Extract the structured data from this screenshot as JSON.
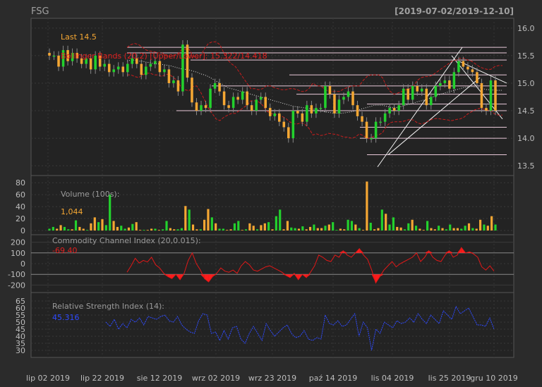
{
  "chart_data": {
    "type": "candlestick",
    "ticker": "FSG",
    "range": "[2019-07-02/2019-12-10]",
    "x_labels": [
      "lip 02 2019",
      "lip 22 2019",
      "sie 12 2019",
      "wrz 02 2019",
      "wrz 23 2019",
      "paź 14 2019",
      "lis 04 2019",
      "lis 25 2019",
      "gru 10 2019"
    ],
    "price": {
      "yticks": [
        13.5,
        14.0,
        14.5,
        15.0,
        15.5,
        16.0
      ],
      "ylim": [
        13.4,
        16.1
      ],
      "last_label": "Last 14.5",
      "bb_label": "Bollinger Bands (20,2) [Upper/Lower]: 15.322/14.418",
      "closes": [
        15.5,
        15.5,
        15.3,
        15.6,
        15.4,
        15.55,
        15.45,
        15.35,
        15.45,
        15.25,
        15.5,
        15.3,
        15.35,
        15.2,
        15.25,
        15.3,
        15.2,
        15.35,
        15.45,
        15.35,
        15.15,
        15.3,
        15.35,
        15.4,
        15.2,
        15.25,
        15.0,
        15.05,
        14.85,
        15.7,
        15.1,
        14.65,
        14.5,
        14.6,
        14.55,
        14.9,
        15.0,
        14.85,
        14.6,
        14.55,
        14.75,
        14.7,
        14.85,
        14.6,
        14.5,
        14.7,
        14.75,
        14.55,
        14.4,
        14.45,
        14.3,
        14.2,
        14.0,
        14.5,
        14.45,
        14.3,
        14.6,
        14.45,
        14.55,
        14.55,
        14.95,
        14.8,
        14.45,
        14.7,
        14.75,
        14.85,
        14.6,
        14.4,
        14.3,
        14.0,
        14.0,
        14.3,
        14.3,
        14.45,
        14.55,
        14.5,
        14.6,
        14.9,
        14.7,
        14.95,
        14.85,
        14.9,
        14.6,
        14.75,
        14.95,
        15.0,
        15.05,
        14.9,
        15.2,
        15.4,
        15.3,
        15.25,
        15.2,
        15.0,
        14.55,
        14.5,
        15.05,
        14.5
      ],
      "bb_upper": [
        15.65,
        15.7,
        15.72,
        15.7,
        15.65,
        15.6,
        15.58,
        15.57,
        15.55,
        15.55,
        15.5,
        15.48,
        15.5,
        15.52,
        15.6,
        15.62,
        15.62,
        15.5,
        15.45,
        15.5,
        15.62,
        15.72,
        15.75,
        15.75,
        15.7,
        15.55,
        15.42,
        15.35,
        15.3,
        15.2,
        15.1,
        15.0,
        14.9,
        14.9,
        14.88,
        14.9,
        14.95,
        14.95,
        14.92,
        14.9,
        14.88,
        14.88,
        14.9,
        14.9,
        14.88,
        14.85,
        14.85,
        14.9,
        15.0,
        14.95,
        14.95,
        14.9,
        14.85,
        14.85,
        14.85,
        14.85,
        14.9,
        14.92,
        14.95,
        14.95,
        14.95,
        15.05,
        15.12,
        15.15,
        15.15,
        15.15,
        15.1,
        14.95,
        14.85,
        14.8,
        14.82,
        14.85,
        14.88,
        14.9,
        14.95,
        15.05,
        15.1,
        15.12,
        15.12,
        15.15,
        15.2,
        15.25,
        15.3,
        15.35,
        15.4,
        15.42,
        15.45,
        15.45,
        15.42,
        15.4,
        15.35,
        15.3,
        15.27,
        15.25,
        15.25,
        15.3,
        15.32,
        15.32
      ],
      "bb_mid": [
        15.4,
        15.42,
        15.42,
        15.4,
        15.4,
        15.38,
        15.37,
        15.35,
        15.35,
        15.34,
        15.33,
        15.32,
        15.3,
        15.28,
        15.26,
        15.25,
        15.24,
        15.22,
        15.2,
        15.17,
        15.15,
        15.12,
        15.08,
        15.04,
        15.0,
        14.96,
        14.92,
        14.9,
        14.88,
        14.86,
        14.84,
        14.82,
        14.8,
        14.78,
        14.76,
        14.74,
        14.72,
        14.7,
        14.68,
        14.66,
        14.64,
        14.62,
        14.6,
        14.58,
        14.57,
        14.56,
        14.55,
        14.54,
        14.53,
        14.52,
        14.5,
        14.48,
        14.47,
        14.46,
        14.46,
        14.45,
        14.46,
        14.47,
        14.48,
        14.5,
        14.52,
        14.54,
        14.56,
        14.58,
        14.6,
        14.6,
        14.6,
        14.58,
        14.56,
        14.55,
        14.56,
        14.58,
        14.6,
        14.62,
        14.64,
        14.66,
        14.68,
        14.7,
        14.72,
        14.75,
        14.78,
        14.8,
        14.82,
        14.84,
        14.86,
        14.88,
        14.9,
        14.92,
        14.93,
        14.94,
        14.93,
        14.92,
        14.9,
        14.88,
        14.88,
        14.87,
        14.87,
        14.87
      ],
      "bb_lower": [
        15.15,
        15.15,
        15.12,
        15.1,
        15.15,
        15.18,
        15.18,
        15.15,
        15.15,
        15.12,
        15.16,
        15.16,
        15.1,
        15.05,
        14.92,
        14.88,
        14.86,
        14.94,
        14.95,
        14.84,
        14.7,
        14.55,
        14.45,
        14.35,
        14.32,
        14.38,
        14.42,
        14.45,
        14.45,
        14.5,
        14.55,
        14.6,
        14.68,
        14.68,
        14.66,
        14.6,
        14.5,
        14.45,
        14.44,
        14.42,
        14.4,
        14.36,
        14.3,
        14.26,
        14.26,
        14.28,
        14.25,
        14.18,
        14.06,
        14.08,
        14.05,
        14.06,
        14.09,
        14.08,
        14.07,
        14.05,
        14.02,
        14.02,
        14.0,
        14.02,
        14.08,
        14.05,
        14.0,
        14.0,
        14.05,
        14.06,
        14.1,
        14.22,
        14.28,
        14.3,
        14.3,
        14.3,
        14.32,
        14.34,
        14.33,
        14.28,
        14.26,
        14.28,
        14.32,
        14.35,
        14.36,
        14.35,
        14.34,
        14.33,
        14.32,
        14.34,
        14.35,
        14.38,
        14.44,
        14.48,
        14.52,
        14.54,
        14.53,
        14.51,
        14.51,
        14.44,
        14.42,
        14.42
      ]
    },
    "volume": {
      "yticks": [
        0,
        20,
        40,
        60,
        80
      ],
      "ylim": [
        0,
        85
      ],
      "label": "Volume (100s):",
      "last": "1,044",
      "values": [
        3,
        6,
        3,
        9,
        6,
        2,
        2,
        17,
        6,
        3,
        1,
        12,
        22,
        14,
        19,
        9,
        60,
        16,
        6,
        8,
        3,
        5,
        11,
        14,
        1,
        1,
        1,
        3,
        3,
        1,
        2,
        16,
        4,
        2,
        2,
        4,
        41,
        35,
        10,
        2,
        2,
        18,
        36,
        22,
        12,
        3,
        3,
        1,
        2,
        12,
        16,
        1,
        2,
        12,
        8,
        2,
        9,
        12,
        14,
        2,
        24,
        35,
        2,
        16,
        5,
        4,
        3,
        7,
        2,
        6,
        10,
        4,
        4,
        8,
        10,
        14,
        1,
        3,
        2,
        18,
        16,
        10,
        4,
        1,
        82,
        13,
        2,
        4,
        35,
        28,
        10,
        22,
        6,
        5,
        2,
        12,
        18,
        8,
        3,
        1,
        16,
        4,
        2,
        8,
        4,
        2,
        10,
        4,
        4,
        3,
        8,
        12,
        4,
        3,
        18,
        10,
        8,
        24,
        10
      ]
    },
    "cci": {
      "yticks": [
        -200,
        -100,
        0,
        100,
        200
      ],
      "ylim": [
        -230,
        230
      ],
      "label": "Commodity Channel Index (20,0.015):",
      "last": "-69.40",
      "values": [
        -80,
        -20,
        50,
        5,
        30,
        15,
        60,
        -10,
        -40,
        -90,
        -120,
        -140,
        -100,
        -150,
        -90,
        30,
        100,
        0,
        -60,
        -140,
        -170,
        -120,
        -90,
        -40,
        -70,
        -80,
        -60,
        -90,
        -20,
        20,
        -10,
        -60,
        -70,
        -50,
        -30,
        -20,
        -40,
        -60,
        -80,
        -110,
        -130,
        -90,
        -150,
        -100,
        -130,
        -80,
        -20,
        80,
        60,
        30,
        20,
        80,
        60,
        120,
        80,
        60,
        100,
        140,
        80,
        40,
        -60,
        -180,
        -120,
        -60,
        -20,
        20,
        -30,
        0,
        20,
        40,
        60,
        100,
        20,
        60,
        120,
        60,
        30,
        20,
        80,
        120,
        60,
        80,
        150,
        100,
        110,
        90,
        60,
        -30,
        -60,
        -20,
        -70
      ]
    },
    "rsi": {
      "yticks": [
        30,
        35,
        40,
        45,
        50,
        55,
        60,
        65
      ],
      "ylim": [
        28,
        68
      ],
      "label": "Relative Strength Index (14):",
      "last": "45.316",
      "values": [
        50,
        47,
        52,
        45,
        49,
        46,
        52,
        50,
        53,
        48,
        54,
        53,
        52,
        54,
        55,
        51,
        50,
        54,
        48,
        45,
        43,
        42,
        51,
        56,
        55,
        42,
        43,
        37,
        44,
        38,
        46,
        47,
        38,
        35,
        42,
        47,
        42,
        37,
        49,
        44,
        40,
        43,
        46,
        48,
        42,
        39,
        40,
        44,
        38,
        37,
        39,
        38,
        55,
        49,
        48,
        51,
        47,
        48,
        52,
        56,
        40,
        50,
        46,
        30,
        45,
        42,
        50,
        48,
        46,
        51,
        49,
        50,
        53,
        50,
        56,
        52,
        49,
        55,
        52,
        49,
        58,
        55,
        52,
        61,
        56,
        58,
        60,
        54,
        48,
        48,
        47,
        53,
        45
      ]
    }
  }
}
